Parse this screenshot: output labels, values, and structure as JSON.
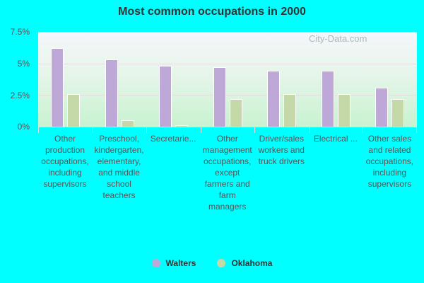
{
  "title": "Most common occupations in 2000",
  "watermark": "City-Data.com",
  "colors": {
    "walters": "#bea8d8",
    "oklahoma": "#c4d8a8"
  },
  "y_ticks": [
    "7.5%",
    "5%",
    "2.5%",
    "0%"
  ],
  "legend": [
    {
      "label": "Walters"
    },
    {
      "label": "Oklahoma"
    }
  ],
  "categories": [
    "Other production occupations, including supervisors",
    "Preschool, kindergarten, elementary, and middle school teachers",
    "Secretarie...",
    "Other management occupations, except farmers and farm managers",
    "Driver/sales workers and truck drivers",
    "Electrical ...",
    "Other sales and related occupations, including supervisors"
  ],
  "chart_data": {
    "type": "bar",
    "title": "Most common occupations in 2000",
    "xlabel": "",
    "ylabel": "",
    "ylim": [
      0,
      7.5
    ],
    "y_tick_labels": [
      "0%",
      "2.5%",
      "5%",
      "7.5%"
    ],
    "grid": true,
    "legend_position": "bottom",
    "categories": [
      "Other production occupations, including supervisors",
      "Preschool, kindergarten, elementary, and middle school teachers",
      "Secretarie...",
      "Other management occupations, except farmers and farm managers",
      "Driver/sales workers and truck drivers",
      "Electrical ...",
      "Other sales and related occupations, including supervisors"
    ],
    "series": [
      {
        "name": "Walters",
        "values": [
          6.2,
          5.3,
          4.8,
          4.7,
          4.4,
          4.4,
          3.1
        ]
      },
      {
        "name": "Oklahoma",
        "values": [
          2.6,
          0.5,
          0.1,
          2.2,
          2.6,
          2.6,
          2.2
        ]
      }
    ]
  }
}
